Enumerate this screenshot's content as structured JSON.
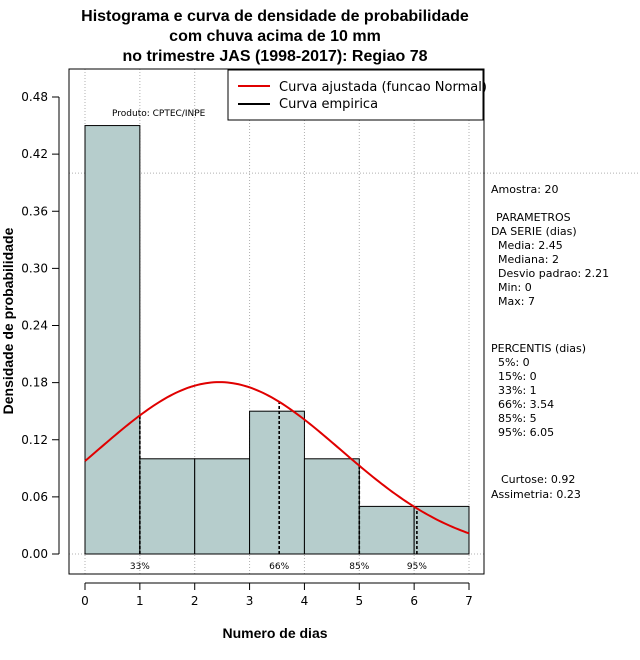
{
  "chart_data": {
    "type": "bar",
    "title_lines": [
      "Histograma e curva de densidade de probabilidade",
      "com chuva acima de 10 mm",
      "no trimestre JAS (1998-2017): Regiao 78"
    ],
    "xlabel": "Numero de dias",
    "ylabel": "Densidade de probabilidade",
    "xlim": [
      0,
      7
    ],
    "ylim": [
      0,
      0.48
    ],
    "x_ticks": [
      "0",
      "1",
      "2",
      "3",
      "4",
      "5",
      "6",
      "7"
    ],
    "y_ticks": [
      "0.00",
      "0.06",
      "0.12",
      "0.18",
      "0.24",
      "0.30",
      "0.36",
      "0.42",
      "0.48"
    ],
    "bins": [
      {
        "from": 0,
        "to": 1,
        "density": 0.45
      },
      {
        "from": 1,
        "to": 2,
        "density": 0.1
      },
      {
        "from": 2,
        "to": 3,
        "density": 0.1
      },
      {
        "from": 3,
        "to": 4,
        "density": 0.15
      },
      {
        "from": 4,
        "to": 5,
        "density": 0.1
      },
      {
        "from": 5,
        "to": 6,
        "density": 0.05
      },
      {
        "from": 6,
        "to": 7,
        "density": 0.05
      }
    ],
    "fitted_curve": {
      "name": "Curva ajustada (funcao Normal)",
      "mean": 2.45,
      "sd": 2.21,
      "color": "#e00000"
    },
    "empirical_curve": {
      "name": "Curva empirica",
      "color": "#000000"
    },
    "percentile_markers": [
      {
        "label": "33%",
        "x": 1
      },
      {
        "label": "66%",
        "x": 3.54
      },
      {
        "label": "85%",
        "x": 5
      },
      {
        "label": "95%",
        "x": 6.05
      }
    ],
    "reference_line_y": 0.4,
    "bar_color": "#b6cdcc",
    "product_label": "Produto: CPTEC/INPE",
    "stats": {
      "amostra": "Amostra: 20",
      "param_header_1": "PARAMETROS",
      "param_header_2": "DA SERIE (dias)",
      "media": "Media: 2.45",
      "mediana": "Mediana: 2",
      "desvio": "Desvio padrao: 2.21",
      "min": "Min: 0",
      "max": "Max: 7",
      "percentis_header": "PERCENTIS (dias)",
      "p5": "5%: 0",
      "p15": "15%: 0",
      "p33": "33%: 1",
      "p66": "66%: 3.54",
      "p85": "85%: 5",
      "p95": "95%: 6.05",
      "curtose": "Curtose: 0.92",
      "assimetria": "Assimetria: 0.23"
    }
  }
}
